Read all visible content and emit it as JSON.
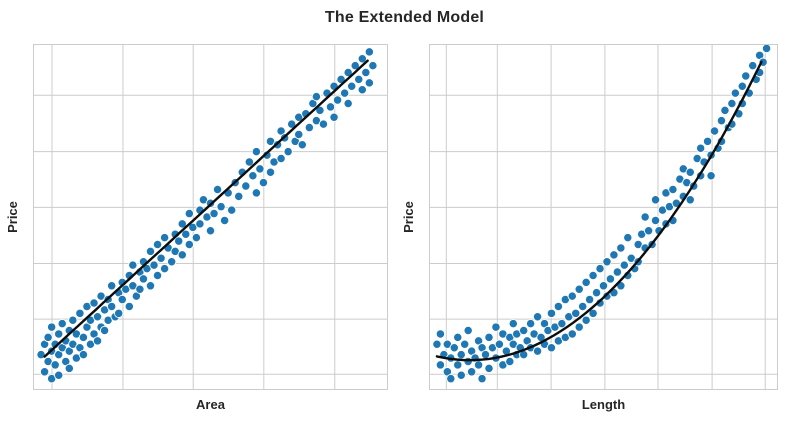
{
  "title": "The Extended Model",
  "colors": {
    "point_fill": "#1f77b4",
    "point_edge": "#ffffff",
    "trend_line": "#0d0d0d",
    "grid": "#cccccc",
    "spine": "#cccccc",
    "background": "#ffffff",
    "title_text": "#262626",
    "label_text": "#262626"
  },
  "chart_data": [
    {
      "type": "scatter",
      "xlabel": "Area",
      "ylabel": "Price",
      "coords": "axes-fraction-origin-bottom-left",
      "grid": true,
      "tick_labels_visible": false,
      "x_gridlines": [
        0.051,
        0.252,
        0.451,
        0.651,
        0.852
      ],
      "y_gridlines": [
        0.043,
        0.203,
        0.365,
        0.528,
        0.69,
        0.854
      ],
      "trend": {
        "shape": "linear",
        "coeffs": [
          0.066,
          0.94,
          0.0
        ],
        "x_range": [
          0.03,
          0.945
        ]
      },
      "points": [
        [
          0.02,
          0.1
        ],
        [
          0.03,
          0.05
        ],
        [
          0.03,
          0.13
        ],
        [
          0.04,
          0.08
        ],
        [
          0.04,
          0.15
        ],
        [
          0.05,
          0.03
        ],
        [
          0.05,
          0.11
        ],
        [
          0.05,
          0.18
        ],
        [
          0.06,
          0.07
        ],
        [
          0.06,
          0.13
        ],
        [
          0.07,
          0.1
        ],
        [
          0.07,
          0.16
        ],
        [
          0.07,
          0.04
        ],
        [
          0.08,
          0.12
        ],
        [
          0.08,
          0.19
        ],
        [
          0.09,
          0.08
        ],
        [
          0.09,
          0.14
        ],
        [
          0.1,
          0.11
        ],
        [
          0.1,
          0.17
        ],
        [
          0.1,
          0.06
        ],
        [
          0.11,
          0.13
        ],
        [
          0.11,
          0.2
        ],
        [
          0.12,
          0.09
        ],
        [
          0.12,
          0.16
        ],
        [
          0.13,
          0.12
        ],
        [
          0.13,
          0.22
        ],
        [
          0.14,
          0.15
        ],
        [
          0.14,
          0.1
        ],
        [
          0.15,
          0.18
        ],
        [
          0.15,
          0.24
        ],
        [
          0.16,
          0.13
        ],
        [
          0.16,
          0.2
        ],
        [
          0.17,
          0.16
        ],
        [
          0.17,
          0.25
        ],
        [
          0.18,
          0.21
        ],
        [
          0.18,
          0.14
        ],
        [
          0.19,
          0.18
        ],
        [
          0.19,
          0.27
        ],
        [
          0.2,
          0.23
        ],
        [
          0.2,
          0.17
        ],
        [
          0.21,
          0.26
        ],
        [
          0.21,
          0.2
        ],
        [
          0.22,
          0.24
        ],
        [
          0.22,
          0.3
        ],
        [
          0.23,
          0.21
        ],
        [
          0.24,
          0.28
        ],
        [
          0.24,
          0.22
        ],
        [
          0.25,
          0.31
        ],
        [
          0.25,
          0.26
        ],
        [
          0.26,
          0.29
        ],
        [
          0.27,
          0.24
        ],
        [
          0.27,
          0.33
        ],
        [
          0.28,
          0.3
        ],
        [
          0.28,
          0.36
        ],
        [
          0.29,
          0.27
        ],
        [
          0.3,
          0.34
        ],
        [
          0.3,
          0.29
        ],
        [
          0.31,
          0.37
        ],
        [
          0.31,
          0.32
        ],
        [
          0.32,
          0.35
        ],
        [
          0.33,
          0.3
        ],
        [
          0.33,
          0.4
        ],
        [
          0.34,
          0.36
        ],
        [
          0.35,
          0.33
        ],
        [
          0.35,
          0.42
        ],
        [
          0.36,
          0.38
        ],
        [
          0.37,
          0.35
        ],
        [
          0.37,
          0.44
        ],
        [
          0.38,
          0.41
        ],
        [
          0.39,
          0.37
        ],
        [
          0.4,
          0.45
        ],
        [
          0.4,
          0.4
        ],
        [
          0.41,
          0.43
        ],
        [
          0.42,
          0.39
        ],
        [
          0.42,
          0.48
        ],
        [
          0.43,
          0.45
        ],
        [
          0.44,
          0.42
        ],
        [
          0.44,
          0.51
        ],
        [
          0.45,
          0.47
        ],
        [
          0.46,
          0.44
        ],
        [
          0.47,
          0.52
        ],
        [
          0.47,
          0.48
        ],
        [
          0.48,
          0.55
        ],
        [
          0.49,
          0.5
        ],
        [
          0.5,
          0.46
        ],
        [
          0.5,
          0.54
        ],
        [
          0.51,
          0.51
        ],
        [
          0.52,
          0.58
        ],
        [
          0.53,
          0.53
        ],
        [
          0.54,
          0.49
        ],
        [
          0.55,
          0.57
        ],
        [
          0.56,
          0.52
        ],
        [
          0.57,
          0.6
        ],
        [
          0.58,
          0.56
        ],
        [
          0.59,
          0.63
        ],
        [
          0.6,
          0.59
        ],
        [
          0.61,
          0.66
        ],
        [
          0.62,
          0.62
        ],
        [
          0.63,
          0.57
        ],
        [
          0.63,
          0.69
        ],
        [
          0.64,
          0.64
        ],
        [
          0.65,
          0.6
        ],
        [
          0.66,
          0.68
        ],
        [
          0.67,
          0.63
        ],
        [
          0.67,
          0.72
        ],
        [
          0.68,
          0.66
        ],
        [
          0.69,
          0.71
        ],
        [
          0.7,
          0.75
        ],
        [
          0.7,
          0.67
        ],
        [
          0.71,
          0.73
        ],
        [
          0.72,
          0.69
        ],
        [
          0.73,
          0.77
        ],
        [
          0.74,
          0.72
        ],
        [
          0.75,
          0.79
        ],
        [
          0.75,
          0.74
        ],
        [
          0.76,
          0.71
        ],
        [
          0.77,
          0.8
        ],
        [
          0.78,
          0.76
        ],
        [
          0.79,
          0.83
        ],
        [
          0.8,
          0.78
        ],
        [
          0.8,
          0.85
        ],
        [
          0.81,
          0.81
        ],
        [
          0.82,
          0.77
        ],
        [
          0.83,
          0.86
        ],
        [
          0.84,
          0.82
        ],
        [
          0.85,
          0.88
        ],
        [
          0.85,
          0.79
        ],
        [
          0.86,
          0.84
        ],
        [
          0.87,
          0.9
        ],
        [
          0.88,
          0.86
        ],
        [
          0.89,
          0.92
        ],
        [
          0.89,
          0.83
        ],
        [
          0.9,
          0.88
        ],
        [
          0.91,
          0.94
        ],
        [
          0.92,
          0.9
        ],
        [
          0.93,
          0.96
        ],
        [
          0.93,
          0.87
        ],
        [
          0.94,
          0.92
        ],
        [
          0.95,
          0.98
        ],
        [
          0.95,
          0.89
        ],
        [
          0.96,
          0.94
        ]
      ]
    },
    {
      "type": "scatter",
      "xlabel": "Length",
      "ylabel": "Price",
      "coords": "axes-fraction-origin-bottom-left",
      "grid": true,
      "tick_labels_visible": false,
      "x_gridlines": [
        0.047,
        0.194,
        0.349,
        0.504,
        0.657,
        0.813,
        0.966
      ],
      "y_gridlines": [
        0.043,
        0.203,
        0.365,
        0.528,
        0.69,
        0.854
      ],
      "trend": {
        "shape": "quadratic",
        "coeffs": [
          0.1,
          -0.282,
          1.228
        ],
        "x_range": [
          0.02,
          0.955
        ]
      },
      "points": [
        [
          0.02,
          0.13
        ],
        [
          0.03,
          0.07
        ],
        [
          0.03,
          0.16
        ],
        [
          0.04,
          0.1
        ],
        [
          0.05,
          0.05
        ],
        [
          0.05,
          0.13
        ],
        [
          0.06,
          0.09
        ],
        [
          0.06,
          0.03
        ],
        [
          0.07,
          0.12
        ],
        [
          0.08,
          0.07
        ],
        [
          0.08,
          0.15
        ],
        [
          0.09,
          0.1
        ],
        [
          0.09,
          0.04
        ],
        [
          0.1,
          0.13
        ],
        [
          0.11,
          0.08
        ],
        [
          0.11,
          0.17
        ],
        [
          0.12,
          0.11
        ],
        [
          0.12,
          0.05
        ],
        [
          0.13,
          0.09
        ],
        [
          0.14,
          0.14
        ],
        [
          0.14,
          0.07
        ],
        [
          0.15,
          0.12
        ],
        [
          0.15,
          0.03
        ],
        [
          0.16,
          0.1
        ],
        [
          0.17,
          0.15
        ],
        [
          0.17,
          0.06
        ],
        [
          0.18,
          0.12
        ],
        [
          0.19,
          0.09
        ],
        [
          0.19,
          0.18
        ],
        [
          0.2,
          0.13
        ],
        [
          0.21,
          0.07
        ],
        [
          0.21,
          0.16
        ],
        [
          0.22,
          0.11
        ],
        [
          0.23,
          0.15
        ],
        [
          0.23,
          0.08
        ],
        [
          0.24,
          0.13
        ],
        [
          0.24,
          0.19
        ],
        [
          0.25,
          0.1
        ],
        [
          0.25,
          0.16
        ],
        [
          0.26,
          0.12
        ],
        [
          0.27,
          0.17
        ],
        [
          0.27,
          0.1
        ],
        [
          0.28,
          0.14
        ],
        [
          0.29,
          0.19
        ],
        [
          0.29,
          0.12
        ],
        [
          0.3,
          0.16
        ],
        [
          0.31,
          0.11
        ],
        [
          0.31,
          0.21
        ],
        [
          0.32,
          0.15
        ],
        [
          0.33,
          0.19
        ],
        [
          0.33,
          0.13
        ],
        [
          0.34,
          0.17
        ],
        [
          0.35,
          0.22
        ],
        [
          0.35,
          0.12
        ],
        [
          0.36,
          0.18
        ],
        [
          0.37,
          0.14
        ],
        [
          0.37,
          0.24
        ],
        [
          0.38,
          0.19
        ],
        [
          0.39,
          0.15
        ],
        [
          0.39,
          0.26
        ],
        [
          0.4,
          0.21
        ],
        [
          0.41,
          0.16
        ],
        [
          0.41,
          0.27
        ],
        [
          0.42,
          0.22
        ],
        [
          0.43,
          0.18
        ],
        [
          0.43,
          0.29
        ],
        [
          0.44,
          0.24
        ],
        [
          0.45,
          0.2
        ],
        [
          0.45,
          0.31
        ],
        [
          0.46,
          0.26
        ],
        [
          0.47,
          0.33
        ],
        [
          0.47,
          0.22
        ],
        [
          0.48,
          0.28
        ],
        [
          0.49,
          0.35
        ],
        [
          0.49,
          0.25
        ],
        [
          0.5,
          0.3
        ],
        [
          0.51,
          0.27
        ],
        [
          0.51,
          0.37
        ],
        [
          0.52,
          0.32
        ],
        [
          0.53,
          0.28
        ],
        [
          0.53,
          0.39
        ],
        [
          0.54,
          0.34
        ],
        [
          0.55,
          0.3
        ],
        [
          0.55,
          0.41
        ],
        [
          0.56,
          0.36
        ],
        [
          0.57,
          0.33
        ],
        [
          0.57,
          0.44
        ],
        [
          0.58,
          0.38
        ],
        [
          0.59,
          0.35
        ],
        [
          0.6,
          0.42
        ],
        [
          0.6,
          0.37
        ],
        [
          0.61,
          0.45
        ],
        [
          0.62,
          0.41
        ],
        [
          0.62,
          0.5
        ],
        [
          0.63,
          0.46
        ],
        [
          0.64,
          0.42
        ],
        [
          0.65,
          0.49
        ],
        [
          0.65,
          0.55
        ],
        [
          0.66,
          0.46
        ],
        [
          0.67,
          0.52
        ],
        [
          0.68,
          0.48
        ],
        [
          0.68,
          0.57
        ],
        [
          0.69,
          0.53
        ],
        [
          0.7,
          0.49
        ],
        [
          0.7,
          0.58
        ],
        [
          0.71,
          0.54
        ],
        [
          0.72,
          0.61
        ],
        [
          0.73,
          0.56
        ],
        [
          0.73,
          0.64
        ],
        [
          0.74,
          0.6
        ],
        [
          0.75,
          0.55
        ],
        [
          0.75,
          0.63
        ],
        [
          0.76,
          0.59
        ],
        [
          0.77,
          0.67
        ],
        [
          0.78,
          0.62
        ],
        [
          0.78,
          0.7
        ],
        [
          0.79,
          0.66
        ],
        [
          0.8,
          0.72
        ],
        [
          0.81,
          0.68
        ],
        [
          0.81,
          0.62
        ],
        [
          0.82,
          0.75
        ],
        [
          0.83,
          0.7
        ],
        [
          0.84,
          0.78
        ],
        [
          0.84,
          0.72
        ],
        [
          0.85,
          0.81
        ],
        [
          0.86,
          0.76
        ],
        [
          0.87,
          0.83
        ],
        [
          0.87,
          0.77
        ],
        [
          0.88,
          0.86
        ],
        [
          0.89,
          0.8
        ],
        [
          0.9,
          0.88
        ],
        [
          0.9,
          0.83
        ],
        [
          0.91,
          0.91
        ],
        [
          0.92,
          0.86
        ],
        [
          0.93,
          0.94
        ],
        [
          0.94,
          0.9
        ],
        [
          0.95,
          0.97
        ],
        [
          0.95,
          0.92
        ],
        [
          0.96,
          0.95
        ],
        [
          0.97,
          0.99
        ]
      ]
    }
  ],
  "style": {
    "point_radius": 4.2,
    "point_edge_width": 0.9,
    "trend_width": 2.4
  }
}
